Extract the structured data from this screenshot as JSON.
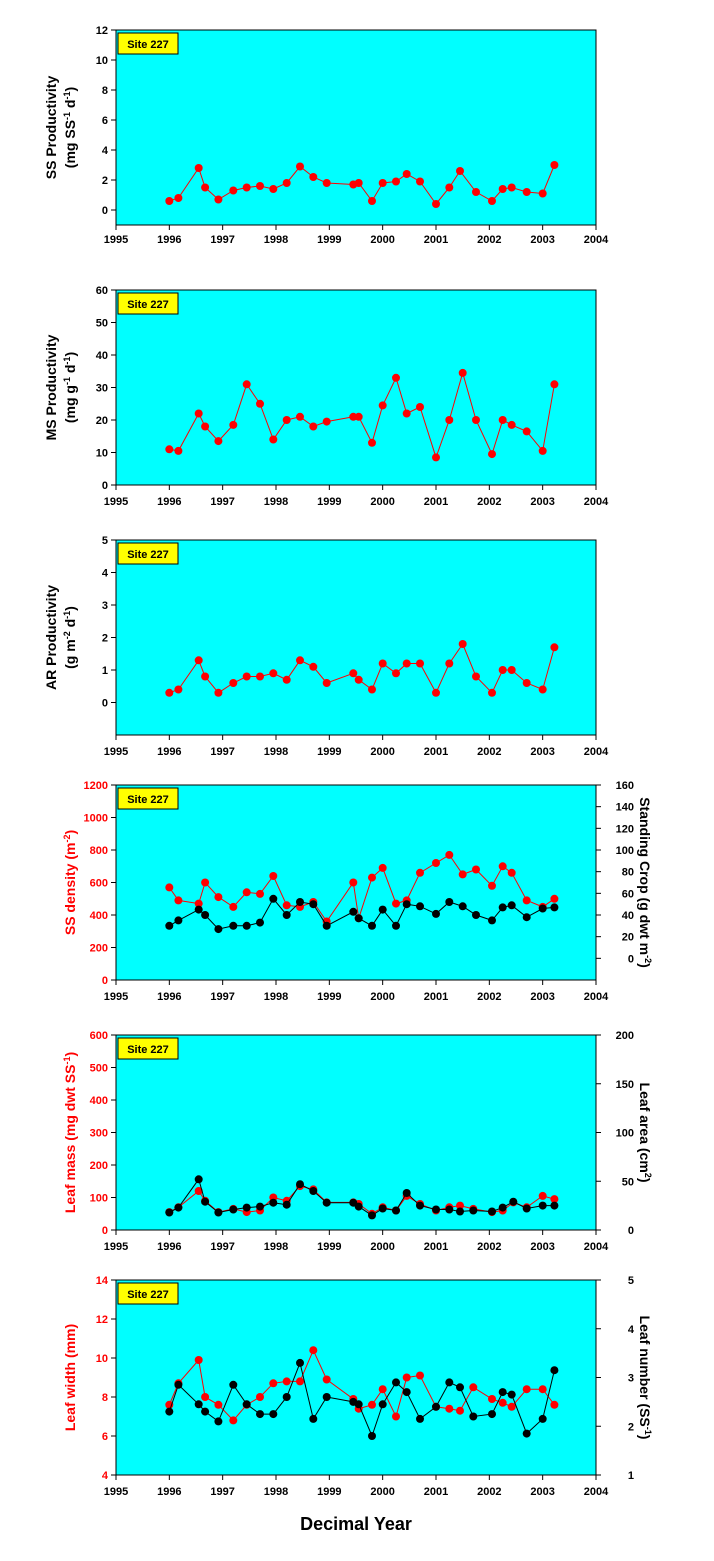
{
  "colors": {
    "plot_bg": "#00ffff",
    "red_series": "#ff0000",
    "black_series": "#000000",
    "site_label_bg": "#ffff00",
    "red_axis_label": "#ff0000"
  },
  "x_axis": {
    "label": "Decimal Year",
    "range": [
      1995,
      2004
    ],
    "ticks": [
      "1995",
      "1996",
      "1997",
      "1998",
      "1999",
      "2000",
      "2001",
      "2002",
      "2003",
      "2004"
    ]
  },
  "chart_data": [
    {
      "type": "line",
      "site_label": "Site 227",
      "ylabel": "SS Productivity",
      "ylabel_2": "(mg SS",
      "ylabel_2_sup": "-1",
      "ylabel_2_mid": " d",
      "ylabel_2_sup2": "-1",
      "ylabel_2_end": ")",
      "ylim": [
        -1,
        12
      ],
      "yticks": [
        "0",
        "2",
        "4",
        "6",
        "8",
        "10",
        "12"
      ],
      "series": [
        {
          "color": "red",
          "x": [
            1996.0,
            1996.17,
            1996.55,
            1996.67,
            1996.92,
            1997.2,
            1997.45,
            1997.7,
            1997.95,
            1998.2,
            1998.45,
            1998.7,
            1998.95,
            1999.45,
            1999.55,
            1999.8,
            2000.0,
            2000.25,
            2000.45,
            2000.7,
            2001.0,
            2001.25,
            2001.45,
            2001.75,
            2002.05,
            2002.25,
            2002.42,
            2002.7,
            2003.0,
            2003.22
          ],
          "y": [
            0.6,
            0.8,
            2.8,
            1.5,
            0.7,
            1.3,
            1.5,
            1.6,
            1.4,
            1.8,
            2.9,
            2.2,
            1.8,
            1.7,
            1.8,
            0.6,
            1.8,
            1.9,
            2.4,
            1.9,
            0.4,
            1.5,
            2.6,
            1.2,
            0.6,
            1.4,
            1.5,
            1.2,
            1.1,
            3.0
          ]
        }
      ]
    },
    {
      "type": "line",
      "site_label": "Site 227",
      "ylabel": "MS Productivity",
      "ylabel_2": "(mg g",
      "ylabel_2_sup": "-1",
      "ylabel_2_mid": " d",
      "ylabel_2_sup2": "-1",
      "ylabel_2_end": ")",
      "ylim": [
        0,
        60
      ],
      "yticks": [
        "0",
        "10",
        "20",
        "30",
        "40",
        "50",
        "60"
      ],
      "series": [
        {
          "color": "red",
          "x": [
            1996.0,
            1996.17,
            1996.55,
            1996.67,
            1996.92,
            1997.2,
            1997.45,
            1997.7,
            1997.95,
            1998.2,
            1998.45,
            1998.7,
            1998.95,
            1999.45,
            1999.55,
            1999.8,
            2000.0,
            2000.25,
            2000.45,
            2000.7,
            2001.0,
            2001.25,
            2001.5,
            2001.75,
            2002.05,
            2002.25,
            2002.42,
            2002.7,
            2003.0,
            2003.22
          ],
          "y": [
            11,
            10.5,
            22,
            18,
            13.5,
            18.5,
            31,
            25,
            14,
            20,
            21,
            18,
            19.5,
            21,
            21,
            13,
            24.5,
            33,
            22,
            24,
            8.5,
            20,
            34.5,
            20,
            9.5,
            20,
            18.5,
            16.5,
            10.5,
            31
          ]
        }
      ]
    },
    {
      "type": "line",
      "site_label": "Site 227",
      "ylabel": "AR Productivity",
      "ylabel_2": "(g m",
      "ylabel_2_sup": "-2",
      "ylabel_2_mid": " d",
      "ylabel_2_sup2": "-1",
      "ylabel_2_end": ")",
      "ylim": [
        -1,
        5
      ],
      "yticks": [
        "0",
        "1",
        "2",
        "3",
        "4",
        "5"
      ],
      "series": [
        {
          "color": "red",
          "x": [
            1996.0,
            1996.17,
            1996.55,
            1996.67,
            1996.92,
            1997.2,
            1997.45,
            1997.7,
            1997.95,
            1998.2,
            1998.45,
            1998.7,
            1998.95,
            1999.45,
            1999.55,
            1999.8,
            2000.0,
            2000.25,
            2000.45,
            2000.7,
            2001.0,
            2001.25,
            2001.5,
            2001.75,
            2002.05,
            2002.25,
            2002.42,
            2002.7,
            2003.0,
            2003.22
          ],
          "y": [
            0.3,
            0.4,
            1.3,
            0.8,
            0.3,
            0.6,
            0.8,
            0.8,
            0.9,
            0.7,
            1.3,
            1.1,
            0.6,
            0.9,
            0.7,
            0.4,
            1.2,
            0.9,
            1.2,
            1.2,
            0.3,
            1.2,
            1.8,
            0.8,
            0.3,
            1.0,
            1.0,
            0.6,
            0.4,
            1.7
          ]
        }
      ]
    },
    {
      "type": "line",
      "site_label": "Site 227",
      "ylabel": "SS density (m",
      "ylabel_sup": "-2",
      "ylabel_end": ")",
      "ylabel_color": "red",
      "ylim": [
        0,
        1200
      ],
      "yticks": [
        "0",
        "200",
        "400",
        "600",
        "800",
        "1000",
        "1200"
      ],
      "y2label": "Standing Crop (g dwt m",
      "y2label_sup": "-2",
      "y2label_end": ")",
      "y2lim": [
        -20,
        160
      ],
      "y2ticks": [
        "0",
        "20",
        "40",
        "60",
        "80",
        "100",
        "120",
        "140",
        "160"
      ],
      "series": [
        {
          "color": "red",
          "axis": "left",
          "x": [
            1996.0,
            1996.17,
            1996.55,
            1996.67,
            1996.92,
            1997.2,
            1997.45,
            1997.7,
            1997.95,
            1998.2,
            1998.45,
            1998.7,
            1998.95,
            1999.45,
            1999.55,
            1999.8,
            2000.0,
            2000.25,
            2000.45,
            2000.7,
            2001.0,
            2001.25,
            2001.5,
            2001.75,
            2002.05,
            2002.25,
            2002.42,
            2002.7,
            2003.0,
            2003.22
          ],
          "y": [
            570,
            490,
            470,
            600,
            510,
            450,
            540,
            530,
            640,
            460,
            450,
            480,
            360,
            600,
            380,
            630,
            690,
            470,
            490,
            660,
            720,
            770,
            650,
            680,
            580,
            700,
            660,
            490,
            450,
            500
          ]
        },
        {
          "color": "black",
          "axis": "right",
          "x": [
            1996.0,
            1996.17,
            1996.55,
            1996.67,
            1996.92,
            1997.2,
            1997.45,
            1997.7,
            1997.95,
            1998.2,
            1998.45,
            1998.7,
            1998.95,
            1999.45,
            1999.55,
            1999.8,
            2000.0,
            2000.25,
            2000.45,
            2000.7,
            2001.0,
            2001.25,
            2001.5,
            2001.75,
            2002.05,
            2002.25,
            2002.42,
            2002.7,
            2003.0,
            2003.22
          ],
          "y": [
            30,
            35,
            45,
            40,
            27,
            30,
            30,
            33,
            55,
            40,
            52,
            50,
            30,
            43,
            37,
            30,
            45,
            30,
            50,
            48,
            41,
            52,
            48,
            40,
            35,
            47,
            49,
            38,
            46,
            47
          ]
        }
      ]
    },
    {
      "type": "line",
      "site_label": "Site 227",
      "ylabel": "Leaf mass (mg dwt SS",
      "ylabel_sup": "-1",
      "ylabel_end": ")",
      "ylabel_color": "red",
      "ylim": [
        0,
        600
      ],
      "yticks": [
        "0",
        "100",
        "200",
        "300",
        "400",
        "500",
        "600"
      ],
      "y2label": "Leaf area (cm",
      "y2label_sup": "2",
      "y2label_end": ")",
      "y2lim": [
        0,
        200
      ],
      "y2ticks": [
        "0",
        "50",
        "100",
        "150",
        "200"
      ],
      "series": [
        {
          "color": "red",
          "axis": "left",
          "x": [
            1996.0,
            1996.17,
            1996.55,
            1996.67,
            1996.92,
            1997.2,
            1997.45,
            1997.7,
            1997.95,
            1998.2,
            1998.45,
            1998.7,
            1998.95,
            1999.45,
            1999.55,
            1999.8,
            2000.0,
            2000.25,
            2000.45,
            2000.7,
            2001.0,
            2001.25,
            2001.45,
            2001.7,
            2002.05,
            2002.25,
            2002.45,
            2002.7,
            2003.0,
            2003.22
          ],
          "y": [
            55,
            70,
            120,
            90,
            55,
            65,
            55,
            60,
            100,
            90,
            135,
            125,
            85,
            85,
            80,
            50,
            70,
            60,
            105,
            80,
            60,
            70,
            75,
            65,
            55,
            60,
            85,
            70,
            105,
            95
          ]
        },
        {
          "color": "black",
          "axis": "right",
          "x": [
            1996.0,
            1996.17,
            1996.55,
            1996.67,
            1996.92,
            1997.2,
            1997.45,
            1997.7,
            1997.95,
            1998.2,
            1998.45,
            1998.7,
            1998.95,
            1999.45,
            1999.55,
            1999.8,
            2000.0,
            2000.25,
            2000.45,
            2000.7,
            2001.0,
            2001.25,
            2001.45,
            2001.7,
            2002.05,
            2002.25,
            2002.45,
            2002.7,
            2003.0,
            2003.22
          ],
          "y": [
            18,
            23,
            52,
            29,
            18,
            21,
            23,
            24,
            28,
            26,
            47,
            40,
            28,
            28,
            24,
            15,
            22,
            20,
            38,
            25,
            21,
            21,
            19,
            20,
            19,
            23,
            29,
            22,
            25,
            25
          ]
        }
      ]
    },
    {
      "type": "line",
      "site_label": "Site 227",
      "ylabel": "Leaf width (mm)",
      "ylabel_color": "red",
      "ylim": [
        4,
        14
      ],
      "yticks": [
        "4",
        "6",
        "8",
        "10",
        "12",
        "14"
      ],
      "y2label": "Leaf number (SS",
      "y2label_sup": "-1",
      "y2label_end": ")",
      "y2lim": [
        1,
        5
      ],
      "y2ticks": [
        "1",
        "2",
        "3",
        "4",
        "5"
      ],
      "series": [
        {
          "color": "red",
          "axis": "left",
          "x": [
            1996.0,
            1996.17,
            1996.55,
            1996.67,
            1996.92,
            1997.2,
            1997.45,
            1997.7,
            1997.95,
            1998.2,
            1998.45,
            1998.7,
            1998.95,
            1999.45,
            1999.55,
            1999.8,
            2000.0,
            2000.25,
            2000.45,
            2000.7,
            2001.0,
            2001.25,
            2001.45,
            2001.7,
            2002.05,
            2002.25,
            2002.42,
            2002.7,
            2003.0,
            2003.22
          ],
          "y": [
            7.6,
            8.7,
            9.9,
            8.0,
            7.6,
            6.8,
            7.6,
            8.0,
            8.7,
            8.8,
            8.8,
            10.4,
            8.9,
            7.9,
            7.4,
            7.6,
            8.4,
            7.0,
            9.0,
            9.1,
            7.5,
            7.4,
            7.3,
            8.5,
            7.9,
            7.7,
            7.5,
            8.4,
            8.4,
            7.6
          ]
        },
        {
          "color": "black",
          "axis": "right",
          "x": [
            1996.0,
            1996.17,
            1996.55,
            1996.67,
            1996.92,
            1997.2,
            1997.45,
            1997.7,
            1997.95,
            1998.2,
            1998.45,
            1998.7,
            1998.95,
            1999.45,
            1999.55,
            1999.8,
            2000.0,
            2000.25,
            2000.45,
            2000.7,
            2001.0,
            2001.25,
            2001.45,
            2001.7,
            2002.05,
            2002.25,
            2002.42,
            2002.7,
            2003.0,
            2003.22
          ],
          "y": [
            2.3,
            2.85,
            2.45,
            2.3,
            2.1,
            2.85,
            2.45,
            2.25,
            2.25,
            2.6,
            3.3,
            2.15,
            2.6,
            2.5,
            2.45,
            1.8,
            2.45,
            2.9,
            2.7,
            2.15,
            2.4,
            2.9,
            2.8,
            2.2,
            2.25,
            2.7,
            2.65,
            1.85,
            2.15,
            3.15
          ]
        }
      ]
    }
  ]
}
